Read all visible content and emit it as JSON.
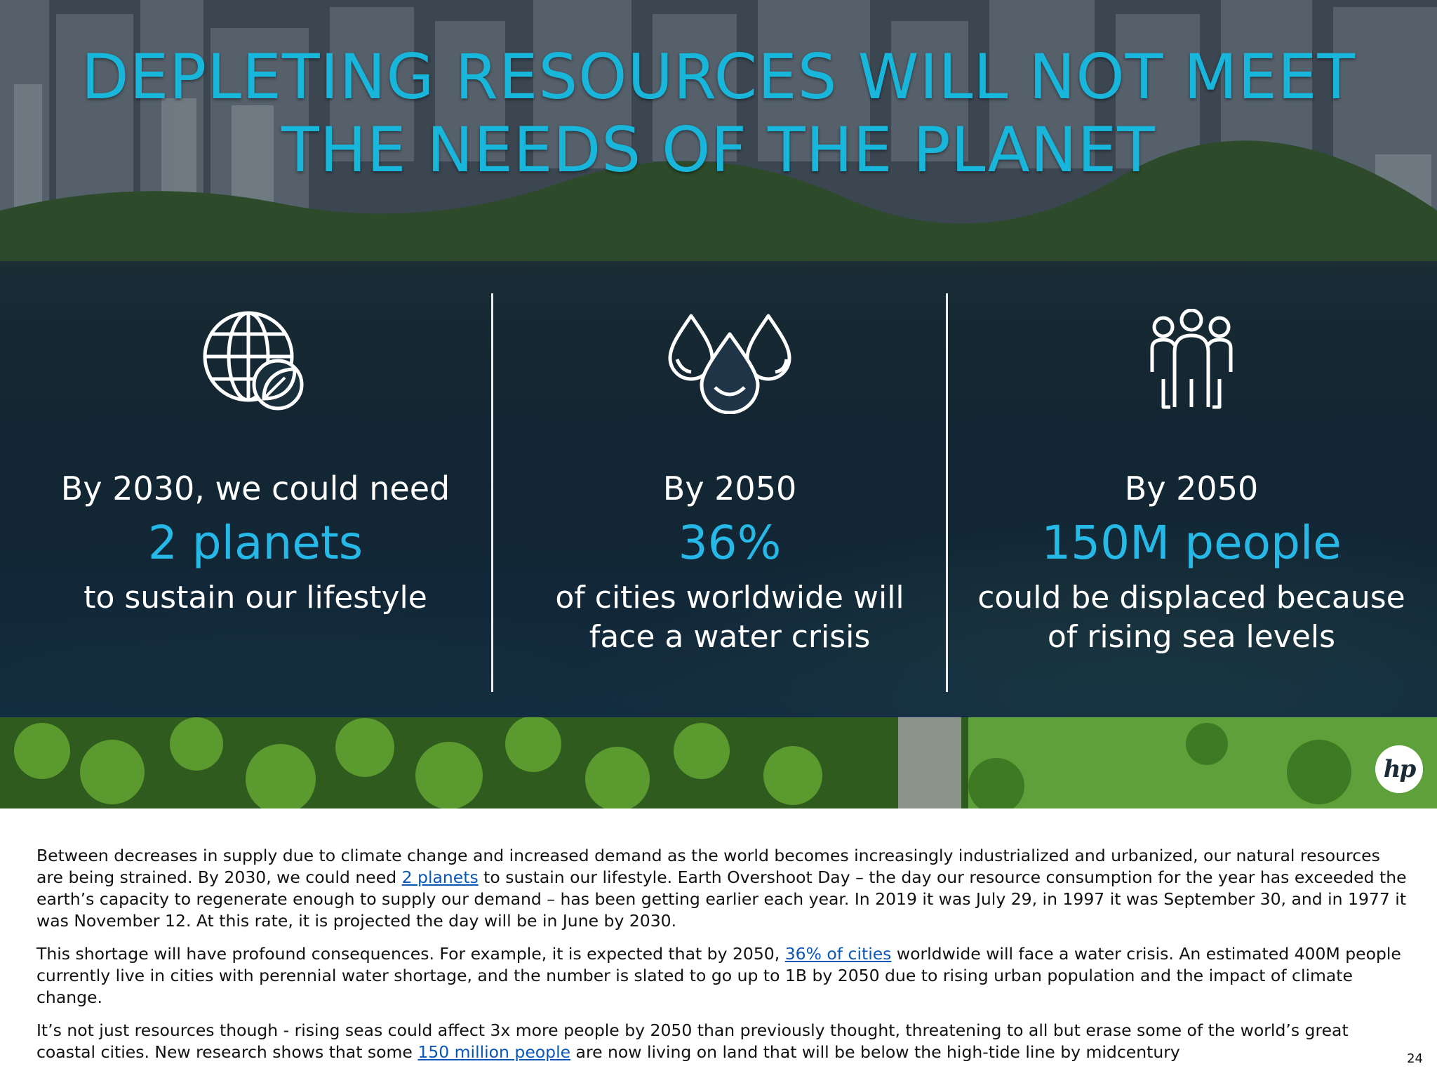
{
  "slide": {
    "title_line1": "DEPLETING RESOURCES WILL NOT MEET",
    "title_line2": "THE NEEDS OF THE PLANET",
    "stats": [
      {
        "icon": "globe-leaf-icon",
        "lead": "By 2030, we could need",
        "highlight": "2 planets",
        "sub_line1": "to sustain our lifestyle",
        "sub_line2": ""
      },
      {
        "icon": "water-drops-icon",
        "lead": "By 2050",
        "highlight": "36%",
        "sub_line1": "of cities worldwide will",
        "sub_line2": "face a water crisis"
      },
      {
        "icon": "people-group-icon",
        "lead": "By 2050",
        "highlight": "150M people",
        "sub_line1": "could be displaced because",
        "sub_line2": "of rising sea levels"
      }
    ],
    "logo_text": "hp",
    "colors": {
      "title": "#19b6dc",
      "highlight": "#26b8e6",
      "link": "#0b57b5"
    }
  },
  "notes": {
    "p1_a": "Between decreases in supply due to climate change and increased demand as the world becomes increasingly industrialized and urbanized, our natural resources are being strained. By 2030, we could need ",
    "p1_link": "2 planets",
    "p1_b": " to sustain our lifestyle. Earth Overshoot Day – the day our resource consumption for the year has exceeded the earth’s capacity to regenerate enough to supply our demand – has been getting earlier each year. In 2019 it was July 29, in 1997 it was September 30, and in 1977 it was November 12. At this rate, it is projected the day will be in June by 2030.",
    "p2_a": "This shortage will have profound consequences. For example, it is expected that by 2050, ",
    "p2_link": "36% of cities",
    "p2_b": " worldwide will face a water crisis. An estimated 400M people currently live in cities with perennial water shortage, and the number is slated to go up to 1B by 2050 due to rising urban population and the impact of climate change.",
    "p3_a": "It’s not just resources though - rising seas could affect 3x more people by 2050 than previously thought, threatening to all but erase some of the world’s great coastal cities. New research shows that some ",
    "p3_link": "150 million people",
    "p3_b": " are now living on land that will be below the high-tide line by midcentury"
  },
  "page_number": "24"
}
